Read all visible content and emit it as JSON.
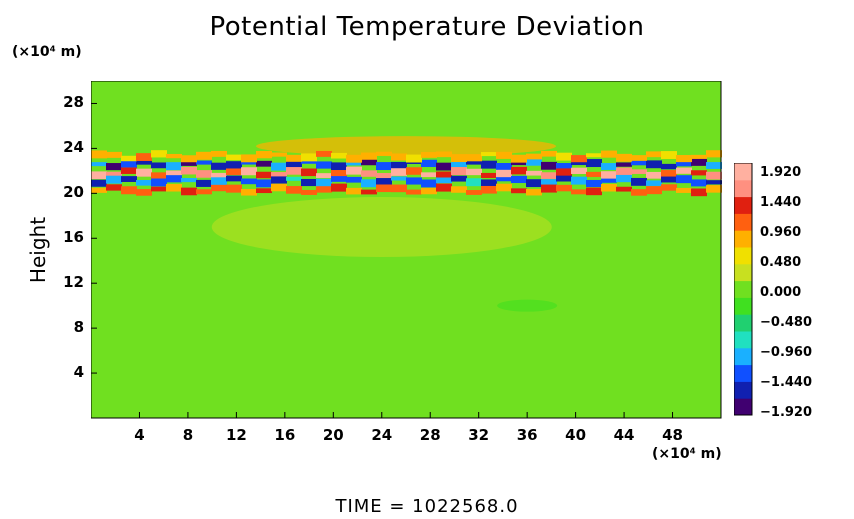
{
  "chart_data": {
    "type": "heatmap",
    "title": "Potential Temperature Deviation",
    "ylabel": "Height",
    "y_unit": "(×10⁴ m)",
    "x_unit": "(×10⁴ m)",
    "footer": "TIME = 1022568.0",
    "xlim": [
      0,
      52
    ],
    "ylim": [
      0,
      30
    ],
    "x_ticks": [
      "4",
      "8",
      "12",
      "16",
      "20",
      "24",
      "28",
      "32",
      "36",
      "40",
      "44",
      "48"
    ],
    "y_ticks": [
      "4",
      "8",
      "12",
      "16",
      "20",
      "24",
      "28"
    ],
    "colorbar": {
      "labels": [
        "1.920",
        "1.440",
        "0.960",
        "0.480",
        "0.000",
        "−0.480",
        "−0.960",
        "−1.440",
        "−1.920"
      ],
      "range": [
        -1.92,
        1.92
      ],
      "colors": [
        "#400070",
        "#1020b0",
        "#1050ff",
        "#1ab0ff",
        "#20e0c0",
        "#20d070",
        "#40e020",
        "#70e020",
        "#c8e020",
        "#f0e000",
        "#ffb000",
        "#ff6010",
        "#e02010",
        "#ff9080",
        "#ffb0a0"
      ]
    },
    "field_description": {
      "background_value": 0.1,
      "bands": [
        {
          "y_center": 22.6,
          "value": -1.7
        },
        {
          "y_center": 21.8,
          "value": 1.8
        },
        {
          "y_center": 21.1,
          "value": -1.5
        },
        {
          "y_center": 20.3,
          "value": 1.2
        },
        {
          "y_center": 23.3,
          "value": 0.9
        }
      ]
    }
  }
}
